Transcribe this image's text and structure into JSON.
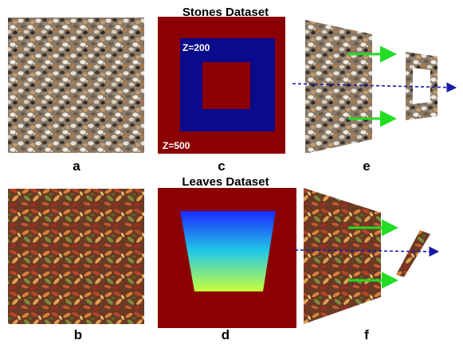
{
  "titles": {
    "stones": "Stones Dataset",
    "leaves": "Leaves Dataset"
  },
  "panels": {
    "a": "a",
    "b": "b",
    "c": "c",
    "d": "d",
    "e": "e",
    "f": "f"
  },
  "depth_labels": {
    "inner": "Z=200",
    "outer": "Z=500"
  },
  "colors": {
    "depth_far": "#8b0000",
    "depth_near_square": "#0a0a8c",
    "gradient_top": "#1a2aff",
    "gradient_mid": "#22c8e6",
    "gradient_bottom": "#c8ff3a",
    "arrow_green": "#22dd22",
    "axis_blue": "#1a1aaa"
  }
}
